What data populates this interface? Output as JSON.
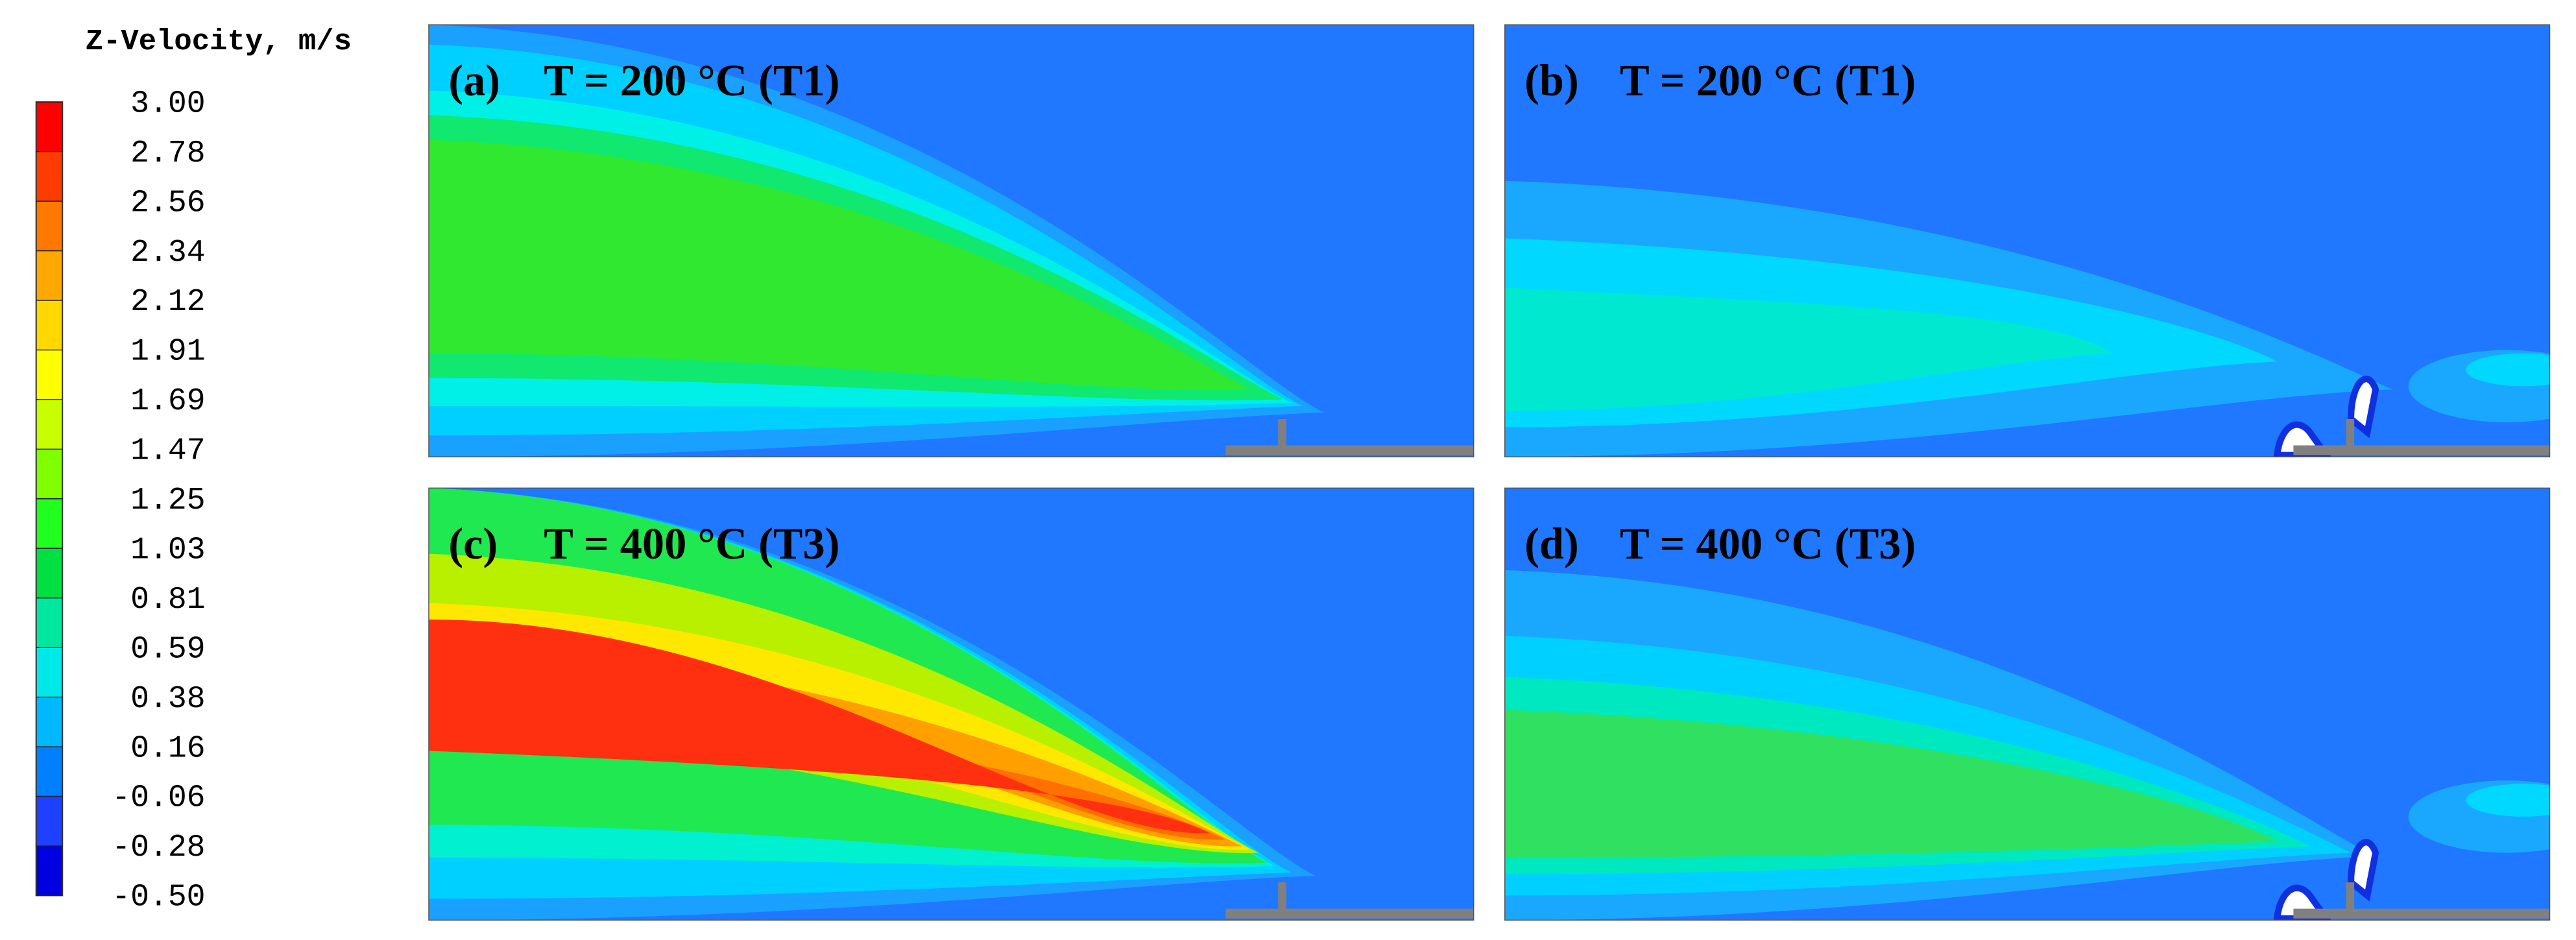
{
  "colorbar": {
    "title": "Z-Velocity, m/s",
    "ticks": [
      {
        "value": 3.0,
        "label": "3.00"
      },
      {
        "value": 2.78,
        "label": "2.78"
      },
      {
        "value": 2.56,
        "label": "2.56"
      },
      {
        "value": 2.34,
        "label": "2.34"
      },
      {
        "value": 2.12,
        "label": "2.12"
      },
      {
        "value": 1.91,
        "label": "1.91"
      },
      {
        "value": 1.69,
        "label": "1.69"
      },
      {
        "value": 1.47,
        "label": "1.47"
      },
      {
        "value": 1.25,
        "label": "1.25"
      },
      {
        "value": 1.03,
        "label": "1.03"
      },
      {
        "value": 0.81,
        "label": "0.81"
      },
      {
        "value": 0.59,
        "label": "0.59"
      },
      {
        "value": 0.38,
        "label": "0.38"
      },
      {
        "value": 0.16,
        "label": "0.16"
      },
      {
        "value": -0.06,
        "label": "-0.06"
      },
      {
        "value": -0.28,
        "label": "-0.28"
      },
      {
        "value": -0.5,
        "label": "-0.50"
      }
    ],
    "colors": [
      "#ff0000",
      "#ff3c00",
      "#ff7800",
      "#ffa800",
      "#ffd800",
      "#ffff00",
      "#c8ff00",
      "#80ff00",
      "#20ff20",
      "#00e040",
      "#00e8a0",
      "#00e8e8",
      "#00b8ff",
      "#0080ff",
      "#2040ff",
      "#0000e0"
    ]
  },
  "panels": [
    {
      "label": "(a)",
      "title": "T = 200 °C (T1)"
    },
    {
      "label": "(b)",
      "title": "T = 200 °C (T1)"
    },
    {
      "label": "(c)",
      "title": "T = 400 °C (T3)"
    },
    {
      "label": "(d)",
      "title": "T = 400 °C (T3)"
    }
  ]
}
